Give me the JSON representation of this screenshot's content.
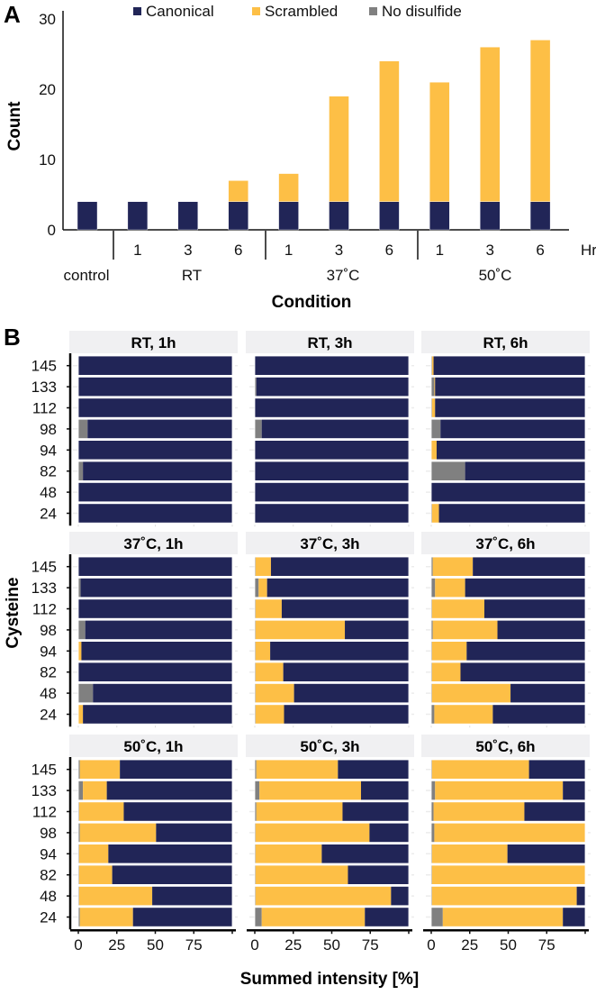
{
  "colors": {
    "canonical": "#212557",
    "scrambled": "#FDBF46",
    "no_disulfide": "#808080",
    "strip": "#F0F0F2"
  },
  "chart_data": [
    {
      "type": "bar",
      "stacked": true,
      "panel_label": "A",
      "title": "",
      "xlabel": "Condition",
      "ylabel": "Count",
      "ylim": [
        0,
        30
      ],
      "yticks": [
        0,
        10,
        20,
        30
      ],
      "legend": {
        "placement": "top",
        "entries": [
          "Canonical",
          "Scrambled",
          "No disulfide"
        ]
      },
      "hour_unit_label": "Hr",
      "categories": [
        {
          "group": "control",
          "hour": ""
        },
        {
          "group": "RT",
          "hour": "1"
        },
        {
          "group": "RT",
          "hour": "3"
        },
        {
          "group": "RT",
          "hour": "6"
        },
        {
          "group": "37˚C",
          "hour": "1"
        },
        {
          "group": "37˚C",
          "hour": "3"
        },
        {
          "group": "37˚C",
          "hour": "6"
        },
        {
          "group": "50˚C",
          "hour": "1"
        },
        {
          "group": "50˚C",
          "hour": "3"
        },
        {
          "group": "50˚C",
          "hour": "6"
        }
      ],
      "groups": [
        "control",
        "RT",
        "37˚C",
        "50˚C"
      ],
      "series": [
        {
          "name": "Canonical",
          "values": [
            4,
            4,
            4,
            4,
            4,
            4,
            4,
            4,
            4,
            4
          ]
        },
        {
          "name": "Scrambled",
          "values": [
            0,
            0,
            0,
            3,
            4,
            15,
            20,
            17,
            22,
            23
          ]
        },
        {
          "name": "No disulfide",
          "values": [
            0,
            0,
            0,
            0,
            0,
            0,
            0,
            0,
            0,
            0
          ]
        }
      ]
    },
    {
      "type": "bar",
      "orientation": "horizontal",
      "stacked": true,
      "panel_label": "B",
      "xlabel": "Summed intensity [%]",
      "ylabel": "Cysteine",
      "xlim": [
        0,
        100
      ],
      "xticks": [
        0,
        25,
        50,
        75
      ],
      "cysteines": [
        "145",
        "133",
        "112",
        "98",
        "94",
        "82",
        "48",
        "24"
      ],
      "series_order": [
        "No disulfide",
        "Scrambled",
        "Canonical"
      ],
      "facets": [
        {
          "title": "RT, 1h",
          "no_disulfide": [
            0,
            0,
            0,
            6,
            0,
            3,
            0,
            0
          ],
          "scrambled": [
            0,
            0,
            0,
            0,
            0,
            0,
            0,
            0
          ]
        },
        {
          "title": "RT, 3h",
          "no_disulfide": [
            0,
            1,
            0,
            4.5,
            0,
            0,
            0,
            0
          ],
          "scrambled": [
            0,
            0,
            0,
            0,
            0,
            0,
            0,
            0
          ]
        },
        {
          "title": "RT, 6h",
          "no_disulfide": [
            0.5,
            2,
            0.5,
            6,
            0,
            22,
            0,
            0.5
          ],
          "scrambled": [
            1,
            0.5,
            2,
            0,
            3.5,
            0,
            0,
            4.5
          ]
        },
        {
          "title": "37˚C, 1h",
          "no_disulfide": [
            0,
            1.5,
            0,
            4.5,
            0,
            0,
            9.5,
            0
          ],
          "scrambled": [
            0,
            0,
            0,
            0,
            2,
            0,
            0,
            3
          ]
        },
        {
          "title": "37˚C, 3h",
          "no_disulfide": [
            0.5,
            2.5,
            0.5,
            0.5,
            0.5,
            0.5,
            0.5,
            0.5
          ],
          "scrambled": [
            10,
            5.5,
            17,
            58,
            9.5,
            18,
            25,
            18.5
          ]
        },
        {
          "title": "37˚C, 6h",
          "no_disulfide": [
            1,
            2.5,
            0.5,
            1,
            0.5,
            0.5,
            0.5,
            2
          ],
          "scrambled": [
            26,
            19.5,
            34,
            42,
            22.5,
            18.5,
            51,
            38
          ]
        },
        {
          "title": "50˚C, 1h",
          "no_disulfide": [
            1,
            3,
            0.5,
            1,
            0.5,
            0.5,
            0.5,
            1
          ],
          "scrambled": [
            26,
            15.5,
            29,
            49.5,
            19,
            21.5,
            47.5,
            34.5
          ]
        },
        {
          "title": "50˚C, 3h",
          "no_disulfide": [
            1,
            3,
            1,
            0.5,
            0.5,
            0.5,
            0.5,
            4.5
          ],
          "scrambled": [
            53,
            66,
            56,
            74,
            43,
            60,
            88,
            67
          ]
        },
        {
          "title": "50˚C, 6h",
          "no_disulfide": [
            0.5,
            2.5,
            1.5,
            2,
            0.5,
            0.5,
            0.5,
            7.5
          ],
          "scrambled": [
            63,
            83,
            59,
            98,
            49,
            99.5,
            94,
            78
          ]
        }
      ]
    }
  ]
}
